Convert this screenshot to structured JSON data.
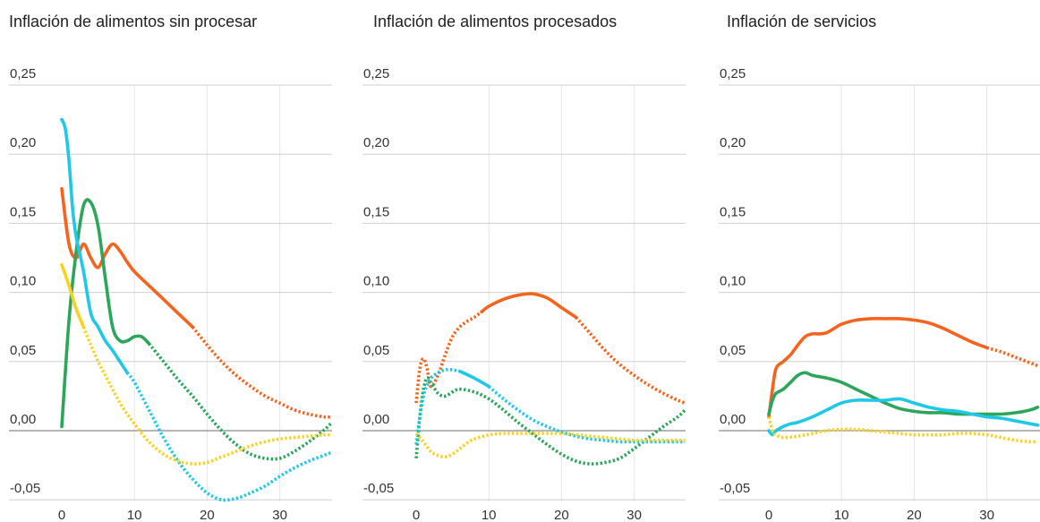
{
  "chart_data": [
    {
      "type": "line",
      "title": "Inflación de alimentos sin procesar",
      "xlim": [
        0,
        37
      ],
      "ylim": [
        -0.06,
        0.25
      ],
      "xticks": [
        "0",
        "10",
        "20",
        "30"
      ],
      "yticks": [
        "0,25",
        "0,20",
        "0,15",
        "0,10",
        "0,05",
        "0,00",
        "-0,05"
      ],
      "grid": true,
      "series": [
        {
          "color": "#f4641e",
          "solid_until": 18,
          "x": [
            0,
            1,
            2,
            3,
            4,
            5,
            6,
            7,
            8,
            9,
            10,
            12,
            14,
            16,
            18,
            20,
            22,
            24,
            26,
            28,
            30,
            32,
            34,
            36,
            37
          ],
          "y": [
            0.175,
            0.135,
            0.125,
            0.135,
            0.125,
            0.118,
            0.128,
            0.135,
            0.13,
            0.122,
            0.115,
            0.105,
            0.095,
            0.085,
            0.075,
            0.062,
            0.05,
            0.04,
            0.032,
            0.025,
            0.02,
            0.015,
            0.012,
            0.01,
            0.01
          ]
        },
        {
          "color": "#2ba65a",
          "solid_until": 12,
          "x": [
            0,
            1,
            2,
            3,
            4,
            5,
            6,
            7,
            8,
            9,
            10,
            11,
            12,
            14,
            16,
            18,
            20,
            22,
            24,
            26,
            28,
            30,
            32,
            34,
            36,
            37
          ],
          "y": [
            0.003,
            0.08,
            0.13,
            0.163,
            0.165,
            0.148,
            0.11,
            0.075,
            0.065,
            0.065,
            0.068,
            0.068,
            0.063,
            0.05,
            0.037,
            0.025,
            0.012,
            0.0,
            -0.01,
            -0.017,
            -0.02,
            -0.02,
            -0.015,
            -0.008,
            0.0,
            0.005
          ]
        },
        {
          "color": "#1ec8e6",
          "solid_until": 9,
          "x": [
            0,
            0.5,
            1,
            1.5,
            2,
            3,
            4,
            5,
            6,
            7,
            8,
            9,
            10,
            12,
            14,
            16,
            18,
            20,
            22,
            24,
            26,
            28,
            30,
            32,
            34,
            36,
            37
          ],
          "y": [
            0.225,
            0.218,
            0.195,
            0.16,
            0.14,
            0.115,
            0.085,
            0.075,
            0.065,
            0.058,
            0.05,
            0.042,
            0.035,
            0.015,
            -0.005,
            -0.022,
            -0.035,
            -0.045,
            -0.05,
            -0.049,
            -0.045,
            -0.04,
            -0.033,
            -0.027,
            -0.022,
            -0.018,
            -0.016
          ]
        },
        {
          "color": "#f7d21e",
          "solid_until": 3,
          "x": [
            0,
            1,
            2,
            3,
            4,
            5,
            6,
            7,
            8,
            9,
            10,
            12,
            14,
            16,
            18,
            20,
            22,
            24,
            26,
            28,
            30,
            32,
            34,
            36,
            37
          ],
          "y": [
            0.12,
            0.105,
            0.088,
            0.075,
            0.062,
            0.05,
            0.04,
            0.03,
            0.02,
            0.012,
            0.005,
            -0.008,
            -0.017,
            -0.022,
            -0.024,
            -0.023,
            -0.019,
            -0.015,
            -0.011,
            -0.008,
            -0.006,
            -0.005,
            -0.004,
            -0.003,
            -0.003
          ]
        }
      ]
    },
    {
      "type": "line",
      "title": "Inflación de alimentos procesados",
      "xlim": [
        0,
        37
      ],
      "ylim": [
        -0.06,
        0.25
      ],
      "xticks": [
        "0",
        "10",
        "20",
        "30"
      ],
      "yticks": [
        "0,25",
        "0,20",
        "0,15",
        "0,10",
        "0,05",
        "0,00",
        "-0,05"
      ],
      "grid": true,
      "series": [
        {
          "color": "#f4641e",
          "solid_until": 22,
          "dotted_until": 9,
          "x": [
            0,
            0.5,
            1,
            1.5,
            2,
            3,
            4,
            5,
            6,
            7,
            8,
            9,
            10,
            12,
            14,
            16,
            18,
            20,
            22,
            24,
            26,
            28,
            30,
            32,
            34,
            36,
            37
          ],
          "y": [
            0.02,
            0.045,
            0.052,
            0.045,
            0.032,
            0.04,
            0.055,
            0.068,
            0.075,
            0.079,
            0.082,
            0.086,
            0.09,
            0.095,
            0.098,
            0.099,
            0.096,
            0.089,
            0.082,
            0.07,
            0.058,
            0.048,
            0.04,
            0.033,
            0.027,
            0.022,
            0.02
          ]
        },
        {
          "color": "#2ba65a",
          "solid_until": -1,
          "x": [
            0,
            0.5,
            1,
            1.5,
            2,
            3,
            4,
            5,
            6,
            8,
            10,
            12,
            14,
            16,
            18,
            20,
            22,
            24,
            26,
            28,
            30,
            32,
            34,
            36,
            37
          ],
          "y": [
            -0.02,
            0.01,
            0.03,
            0.038,
            0.035,
            0.027,
            0.025,
            0.028,
            0.03,
            0.028,
            0.023,
            0.015,
            0.006,
            -0.002,
            -0.01,
            -0.017,
            -0.022,
            -0.024,
            -0.023,
            -0.02,
            -0.013,
            -0.005,
            0.003,
            0.01,
            0.015
          ]
        },
        {
          "color": "#1ec8e6",
          "solid_until": 10,
          "dotted_until": 6,
          "x": [
            0,
            0.5,
            1,
            1.5,
            2,
            3,
            4,
            5,
            6,
            8,
            10,
            12,
            14,
            16,
            18,
            20,
            22,
            24,
            26,
            28,
            30,
            32,
            34,
            36,
            37
          ],
          "y": [
            -0.01,
            0.01,
            0.025,
            0.033,
            0.038,
            0.042,
            0.044,
            0.044,
            0.043,
            0.038,
            0.032,
            0.023,
            0.015,
            0.008,
            0.003,
            -0.001,
            -0.004,
            -0.006,
            -0.007,
            -0.008,
            -0.008,
            -0.008,
            -0.008,
            -0.008,
            -0.008
          ]
        },
        {
          "color": "#f7d21e",
          "solid_until": -1,
          "x": [
            0,
            1,
            2,
            3,
            4,
            5,
            6,
            7,
            8,
            10,
            12,
            14,
            16,
            18,
            20,
            22,
            24,
            26,
            28,
            30,
            32,
            34,
            36,
            37
          ],
          "y": [
            -0.002,
            -0.008,
            -0.015,
            -0.018,
            -0.019,
            -0.017,
            -0.013,
            -0.009,
            -0.006,
            -0.003,
            -0.002,
            -0.002,
            -0.002,
            -0.002,
            -0.002,
            -0.003,
            -0.004,
            -0.005,
            -0.006,
            -0.007,
            -0.007,
            -0.007,
            -0.007,
            -0.007
          ]
        }
      ]
    },
    {
      "type": "line",
      "title": "Inflación de servicios",
      "xlim": [
        0,
        37
      ],
      "ylim": [
        -0.06,
        0.25
      ],
      "xticks": [
        "0",
        "10",
        "20",
        "30"
      ],
      "yticks": [
        "0,25",
        "0,20",
        "0,15",
        "0,10",
        "0,05",
        "0,00",
        "-0,05"
      ],
      "grid": true,
      "series": [
        {
          "color": "#f4641e",
          "solid_until": 30,
          "x": [
            0,
            0.5,
            1,
            2,
            3,
            4,
            5,
            6,
            7,
            8,
            9,
            10,
            12,
            14,
            16,
            18,
            20,
            22,
            24,
            26,
            28,
            30,
            32,
            34,
            36,
            37
          ],
          "y": [
            0.01,
            0.03,
            0.045,
            0.05,
            0.055,
            0.062,
            0.068,
            0.07,
            0.07,
            0.071,
            0.074,
            0.077,
            0.08,
            0.081,
            0.081,
            0.081,
            0.08,
            0.078,
            0.074,
            0.069,
            0.064,
            0.06,
            0.057,
            0.053,
            0.049,
            0.047
          ]
        },
        {
          "color": "#2ba65a",
          "solid_until": 37,
          "x": [
            0,
            0.5,
            1,
            2,
            3,
            4,
            5,
            6,
            8,
            10,
            12,
            14,
            16,
            18,
            20,
            22,
            24,
            26,
            28,
            30,
            32,
            34,
            36,
            37
          ],
          "y": [
            0.012,
            0.022,
            0.027,
            0.03,
            0.035,
            0.04,
            0.042,
            0.04,
            0.038,
            0.035,
            0.03,
            0.025,
            0.02,
            0.016,
            0.014,
            0.013,
            0.013,
            0.012,
            0.012,
            0.012,
            0.012,
            0.013,
            0.015,
            0.017
          ]
        },
        {
          "color": "#1ec8e6",
          "solid_until": 37,
          "x": [
            0,
            0.5,
            1,
            2,
            3,
            4,
            6,
            8,
            10,
            12,
            14,
            16,
            18,
            20,
            22,
            24,
            26,
            28,
            30,
            32,
            34,
            36,
            37
          ],
          "y": [
            0.0,
            -0.003,
            0.0,
            0.003,
            0.005,
            0.006,
            0.01,
            0.015,
            0.02,
            0.022,
            0.022,
            0.022,
            0.023,
            0.02,
            0.017,
            0.015,
            0.014,
            0.012,
            0.01,
            0.009,
            0.007,
            0.005,
            0.004
          ]
        },
        {
          "color": "#f7d21e",
          "solid_until": -1,
          "x": [
            0,
            0.5,
            1,
            2,
            4,
            6,
            8,
            10,
            12,
            14,
            16,
            18,
            20,
            22,
            24,
            26,
            28,
            30,
            32,
            34,
            36,
            37
          ],
          "y": [
            0.01,
            0.0,
            -0.003,
            -0.005,
            -0.004,
            -0.002,
            0.0,
            0.001,
            0.001,
            0.0,
            -0.001,
            -0.002,
            -0.003,
            -0.003,
            -0.003,
            -0.002,
            -0.002,
            -0.003,
            -0.005,
            -0.007,
            -0.008,
            -0.008
          ]
        }
      ]
    }
  ]
}
